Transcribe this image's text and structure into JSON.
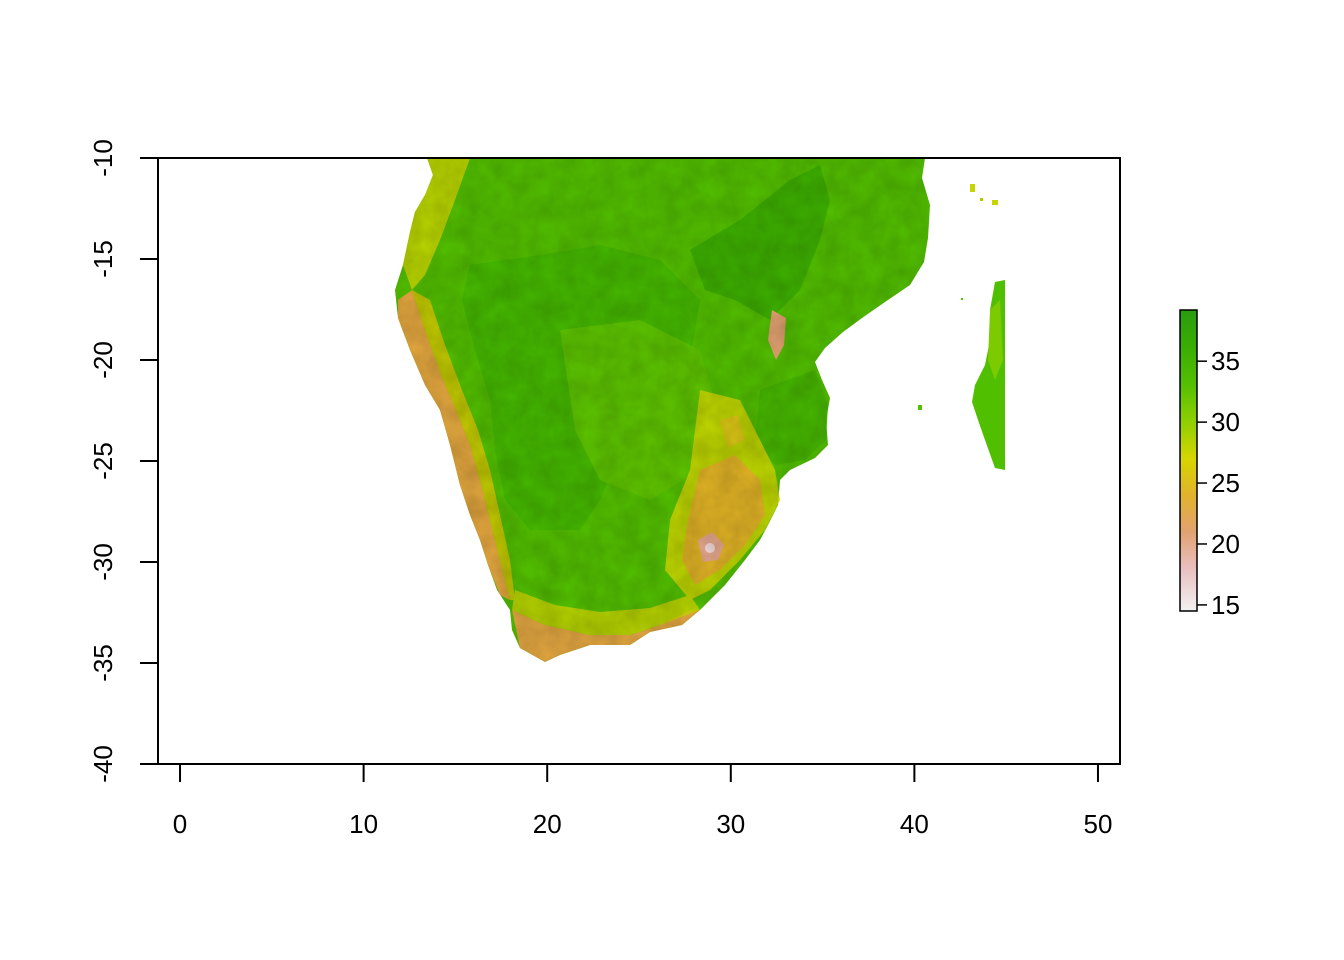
{
  "map": {
    "type": "raster",
    "x_axis": {
      "range": [
        -1.2,
        51.2
      ],
      "ticks": [
        0,
        10,
        20,
        30,
        40,
        50
      ],
      "tick_labels": [
        "0",
        "10",
        "20",
        "30",
        "40",
        "50"
      ]
    },
    "y_axis": {
      "range": [
        -40,
        -10
      ],
      "ticks": [
        -10,
        -15,
        -20,
        -25,
        -30,
        -35,
        -40
      ],
      "tick_labels": [
        "-10",
        "-15",
        "-20",
        "-25",
        "-30",
        "-35",
        "-40"
      ]
    },
    "legend": {
      "placement": "right",
      "range": [
        14.5,
        39.2
      ],
      "ticks": [
        15,
        20,
        25,
        30,
        35
      ],
      "tick_labels": [
        "15",
        "20",
        "25",
        "30",
        "35"
      ],
      "color_stops": [
        {
          "value": 14.5,
          "color": "#f2f2f2"
        },
        {
          "value": 18,
          "color": "#e9bfbf"
        },
        {
          "value": 21,
          "color": "#e2a270"
        },
        {
          "value": 24,
          "color": "#e2b22c"
        },
        {
          "value": 27,
          "color": "#d6d600"
        },
        {
          "value": 30,
          "color": "#8fcf00"
        },
        {
          "value": 33,
          "color": "#56c000"
        },
        {
          "value": 36,
          "color": "#3bae00"
        },
        {
          "value": 39.2,
          "color": "#2a9b10"
        }
      ]
    },
    "frame_color": "#000000"
  }
}
